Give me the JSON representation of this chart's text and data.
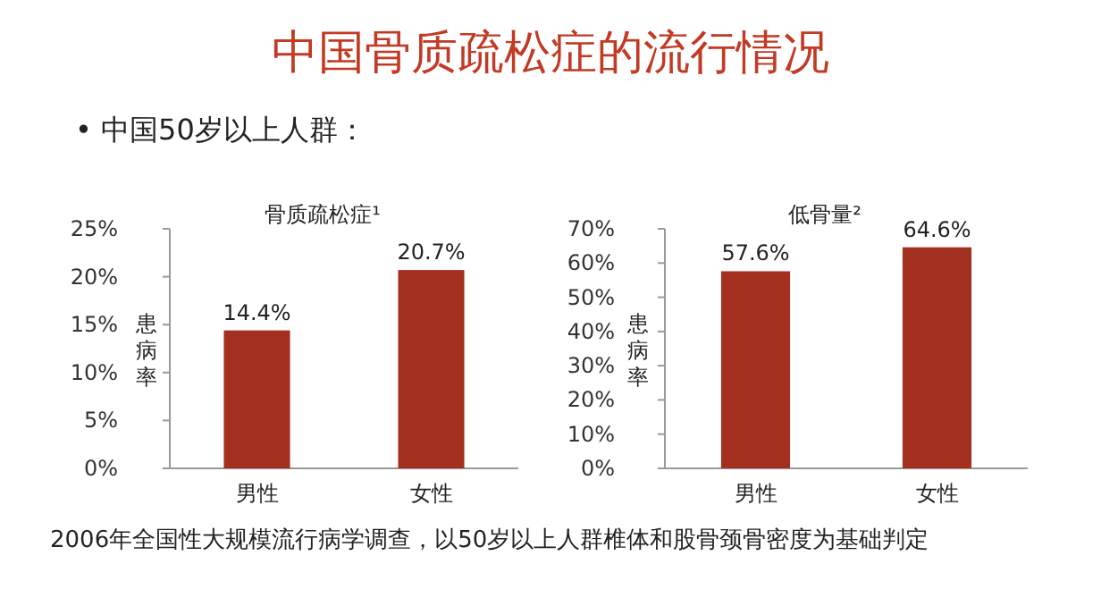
{
  "chart_data": [
    {
      "type": "bar",
      "title": "骨质疏松症¹",
      "subtitle": "• 中国50岁以上人群：",
      "annotations": [
        "中国骨质疏松症的流行情况"
      ],
      "ylabel": "患病率",
      "categories": [
        "男性",
        "女性"
      ],
      "values": [
        14.4,
        20.7
      ],
      "value_labels": [
        "14.4%",
        "20.7%"
      ],
      "color": "#a3301f",
      "ylim": [
        0,
        25
      ],
      "yticks": [
        {
          "value": 0,
          "label": "0%"
        },
        {
          "value": 5,
          "label": "5%"
        },
        {
          "value": 10,
          "label": "10%"
        },
        {
          "value": 15,
          "label": "15%"
        },
        {
          "value": 20,
          "label": "20%"
        },
        {
          "value": 25,
          "label": "25%"
        }
      ],
      "grid": false
    },
    {
      "type": "bar",
      "title": "低骨量²",
      "ylabel": "患病率",
      "categories": [
        "男性",
        "女性"
      ],
      "values": [
        57.6,
        64.6
      ],
      "value_labels": [
        "57.6%",
        "64.6%"
      ],
      "color": "#a3301f",
      "ylim": [
        0,
        70
      ],
      "yticks": [
        {
          "value": 0,
          "label": "0%"
        },
        {
          "value": 10,
          "label": "10%"
        },
        {
          "value": 20,
          "label": "20%"
        },
        {
          "value": 30,
          "label": "30%"
        },
        {
          "value": 40,
          "label": "40%"
        },
        {
          "value": 50,
          "label": "50%"
        },
        {
          "value": 60,
          "label": "60%"
        },
        {
          "value": 70,
          "label": "70%"
        }
      ],
      "grid": false,
      "annotations": [
        "2006年全国性大规模流行病学调查，以50岁以上人群椎体和股骨颈骨密度为基础判定"
      ]
    }
  ]
}
